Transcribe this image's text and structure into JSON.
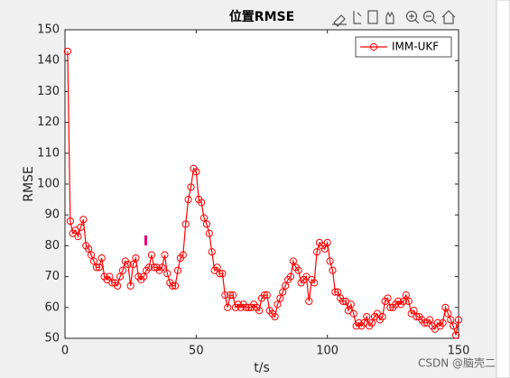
{
  "chart_data": {
    "type": "line",
    "title": "位置RMSE",
    "xlabel": "t/s",
    "ylabel": "RMSE",
    "x": [
      1,
      2,
      3,
      4,
      5,
      6,
      7,
      8,
      9,
      10,
      11,
      12,
      13,
      14,
      15,
      16,
      17,
      18,
      19,
      20,
      21,
      22,
      23,
      24,
      25,
      26,
      27,
      28,
      29,
      30,
      31,
      32,
      33,
      34,
      35,
      36,
      37,
      38,
      39,
      40,
      41,
      42,
      43,
      44,
      45,
      46,
      47,
      48,
      49,
      50,
      51,
      52,
      53,
      54,
      55,
      56,
      57,
      58,
      59,
      60,
      61,
      62,
      63,
      64,
      65,
      66,
      67,
      68,
      69,
      70,
      71,
      72,
      73,
      74,
      75,
      76,
      77,
      78,
      79,
      80,
      81,
      82,
      83,
      84,
      85,
      86,
      87,
      88,
      89,
      90,
      91,
      92,
      93,
      94,
      95,
      96,
      97,
      98,
      99,
      100,
      101,
      102,
      103,
      104,
      105,
      106,
      107,
      108,
      109,
      110,
      111,
      112,
      113,
      114,
      115,
      116,
      117,
      118,
      119,
      120,
      121,
      122,
      123,
      124,
      125,
      126,
      127,
      128,
      129,
      130,
      131,
      132,
      133,
      134,
      135,
      136,
      137,
      138,
      139,
      140,
      141,
      142,
      143,
      144,
      145,
      146,
      147,
      148,
      149,
      150
    ],
    "series": [
      {
        "name": "IMM-UKF",
        "color": "#ff0000",
        "values": [
          143,
          88,
          84,
          85,
          83,
          86,
          88.5,
          80,
          79,
          77,
          75,
          73,
          73,
          76,
          70,
          69,
          70,
          68,
          68,
          67,
          70,
          72,
          75,
          74,
          67,
          74,
          76,
          70,
          69,
          70,
          72,
          73,
          77,
          73,
          73,
          72,
          73,
          77,
          71,
          68,
          67,
          67,
          72,
          76,
          77,
          87,
          95,
          99,
          105,
          104,
          95,
          94,
          89,
          87,
          84,
          78,
          72,
          73,
          71,
          71,
          64,
          60,
          64,
          64,
          60,
          61,
          60,
          61,
          60,
          60,
          60,
          61,
          60,
          59,
          63,
          64,
          64,
          59,
          58,
          57,
          61,
          63,
          65,
          67,
          69,
          70,
          75,
          73,
          72,
          68,
          69,
          70,
          62,
          69,
          68,
          78,
          81,
          80,
          79,
          81,
          75,
          72,
          65,
          65,
          63,
          62,
          62,
          59,
          61,
          58,
          54,
          55,
          54,
          55,
          57,
          54,
          55,
          57,
          58,
          56,
          57,
          62,
          63,
          60,
          60,
          61,
          62,
          61,
          62,
          64,
          62,
          58,
          59,
          57,
          57,
          56,
          55,
          55,
          56,
          54,
          53,
          55,
          54,
          55,
          60,
          58,
          56,
          54,
          51,
          56
        ]
      }
    ],
    "xlim": [
      0,
      150
    ],
    "xticks": [
      0,
      50,
      100,
      150
    ],
    "ylim": [
      50,
      150
    ],
    "yticks": [
      50,
      60,
      70,
      80,
      90,
      100,
      110,
      120,
      130,
      140,
      150
    ],
    "legend": "upper right",
    "watermark": "CSDN @脑壳二"
  }
}
